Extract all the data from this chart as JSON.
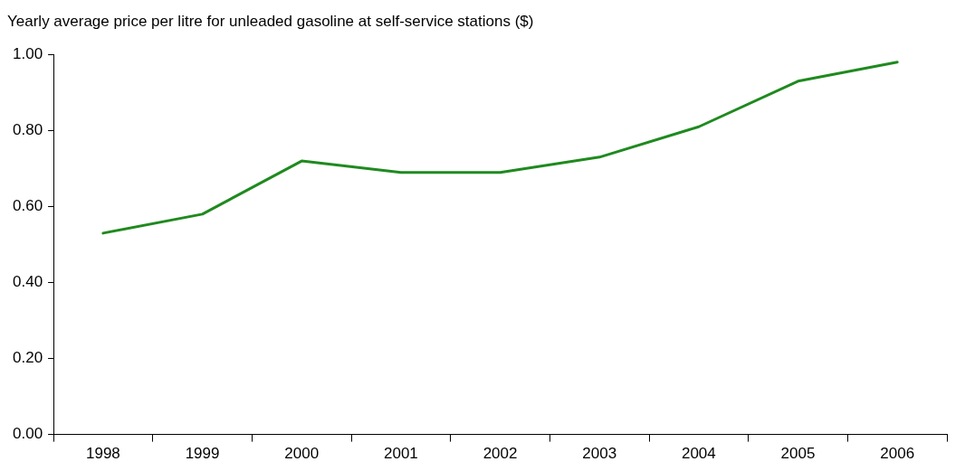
{
  "chart_data": {
    "type": "line",
    "title": "Yearly average price per litre for unleaded gasoline at self-service stations ($)",
    "categories": [
      "1998",
      "1999",
      "2000",
      "2001",
      "2002",
      "2003",
      "2004",
      "2005",
      "2006"
    ],
    "series": [
      {
        "color": "#1f8a1f",
        "values": [
          0.53,
          0.58,
          0.72,
          0.69,
          0.69,
          0.73,
          0.81,
          0.93,
          0.98
        ]
      }
    ],
    "ylim": [
      0,
      1
    ],
    "yticks": [
      {
        "value": 0,
        "label": "0.00"
      },
      {
        "value": 0.2,
        "label": "0.20"
      },
      {
        "value": 0.4,
        "label": "0.40"
      },
      {
        "value": 0.6,
        "label": "0.60"
      },
      {
        "value": 0.8,
        "label": "0.80"
      },
      {
        "value": 1,
        "label": "1.00"
      }
    ],
    "grid": false,
    "legend": false,
    "marker": "none",
    "line_style": "solid"
  }
}
